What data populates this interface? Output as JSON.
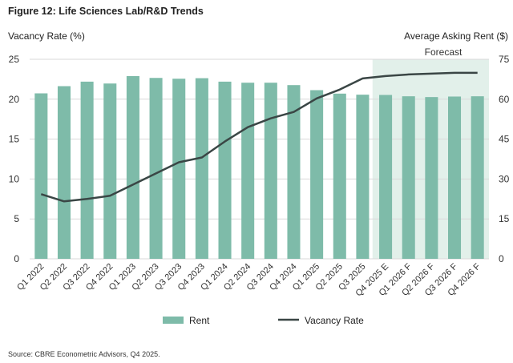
{
  "chart_data": {
    "type": "bar+line",
    "title": "Figure 12: Life Sciences Lab/R&D Trends",
    "ylabel_left": "Vacancy Rate (%)",
    "ylabel_right": "Average Asking Rent ($)",
    "ylim_left": [
      0,
      25
    ],
    "ylim_right": [
      0,
      75
    ],
    "yticks_left": [
      "0",
      "5",
      "10",
      "15",
      "20",
      "25"
    ],
    "yticks_right": [
      "0",
      "15",
      "30",
      "45",
      "60",
      "75"
    ],
    "forecast_label": "Forecast",
    "forecast_start_index": 15,
    "categories": [
      "Q1 2022",
      "Q2 2022",
      "Q3 2022",
      "Q4 2022",
      "Q1 2023",
      "Q2 2023",
      "Q3 2023",
      "Q4 2023",
      "Q1 2024",
      "Q2 2024",
      "Q3 2024",
      "Q4 2024",
      "Q1 2025",
      "Q2 2025",
      "Q3 2025",
      "Q4 2025 E",
      "Q1 2026 F",
      "Q2 2026 F",
      "Q3 2026 F",
      "Q4 2026 F"
    ],
    "series": [
      {
        "name": "Rent",
        "kind": "bar",
        "axis": "right",
        "color": "#7ebba9",
        "values": [
          62.2,
          64.9,
          66.6,
          65.9,
          68.7,
          68.0,
          67.7,
          67.9,
          66.6,
          66.2,
          66.2,
          65.3,
          63.4,
          62.1,
          61.7,
          61.6,
          61.1,
          60.8,
          61.0,
          61.1
        ]
      },
      {
        "name": "Vacancy Rate",
        "kind": "line",
        "axis": "left",
        "color": "#3a4645",
        "values": [
          8.1,
          7.2,
          7.5,
          7.9,
          9.3,
          10.7,
          12.1,
          12.7,
          14.7,
          16.5,
          17.6,
          18.4,
          20.1,
          21.2,
          22.6,
          22.9,
          23.1,
          23.2,
          23.3,
          23.3
        ]
      }
    ],
    "source": "Source: CBRE Econometric Advisors, Q4 2025."
  },
  "colors": {
    "forecast_band": "#e2f0ea",
    "grid": "#d9d9d9"
  }
}
